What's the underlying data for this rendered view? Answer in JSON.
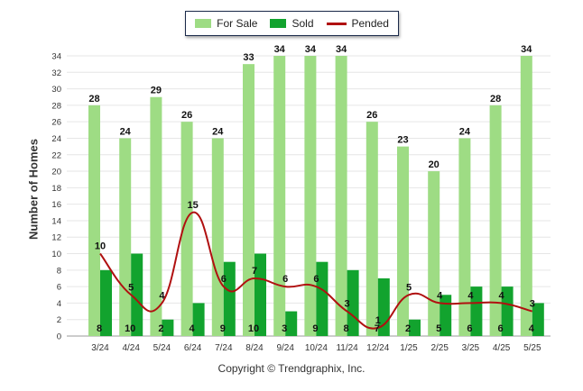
{
  "chart_data": {
    "type": "bar",
    "title": "",
    "xlabel": "",
    "ylabel": "Number of Homes",
    "ylim": [
      0,
      34
    ],
    "yticks": [
      0,
      2,
      4,
      6,
      8,
      10,
      12,
      14,
      16,
      18,
      20,
      22,
      24,
      26,
      28,
      30,
      32,
      34
    ],
    "grid": true,
    "legend_placement": "top-center",
    "categories": [
      "3/24",
      "4/24",
      "5/24",
      "6/24",
      "7/24",
      "8/24",
      "9/24",
      "10/24",
      "11/24",
      "12/24",
      "1/25",
      "2/25",
      "3/25",
      "4/25",
      "5/25"
    ],
    "series": [
      {
        "name": "For Sale",
        "kind": "bar",
        "color": "#9edc84",
        "values": [
          28,
          24,
          29,
          26,
          24,
          33,
          34,
          34,
          34,
          26,
          23,
          20,
          24,
          28,
          34
        ]
      },
      {
        "name": "Sold",
        "kind": "bar",
        "color": "#12a32e",
        "values": [
          8,
          10,
          2,
          4,
          9,
          10,
          3,
          9,
          8,
          7,
          2,
          5,
          6,
          6,
          4
        ]
      },
      {
        "name": "Pended",
        "kind": "line",
        "color": "#b01010",
        "values": [
          10,
          5,
          4,
          15,
          6,
          7,
          6,
          6,
          3,
          1,
          5,
          4,
          4,
          4,
          3
        ]
      }
    ]
  },
  "footer": {
    "copyright": "Copyright © Trendgraphix, Inc."
  }
}
